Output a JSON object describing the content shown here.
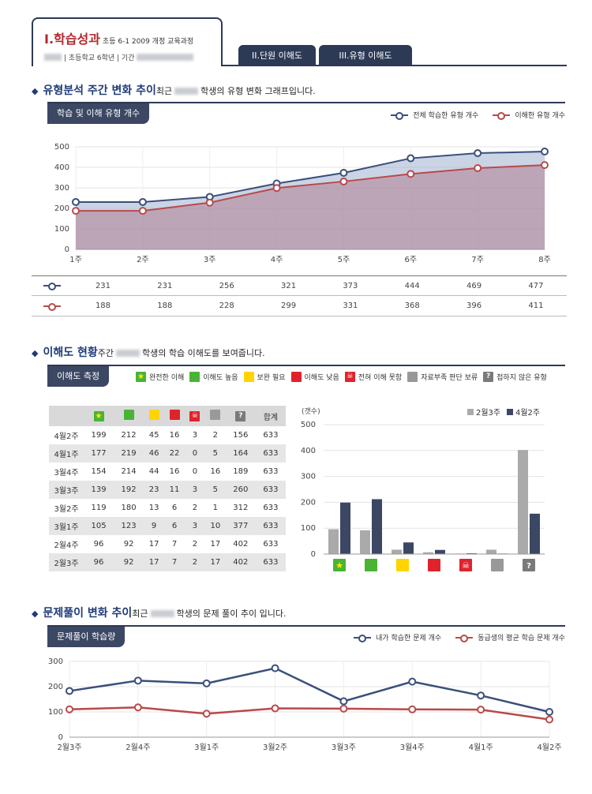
{
  "header": {
    "title_main": "I.학습성과",
    "title_sub": "초등 6-1 2009 개정 교육과정",
    "info": "| 초등학교 6학년 | 기간",
    "tabs": [
      "II.단원 이해도",
      "III.유형 이해도"
    ]
  },
  "section1": {
    "title": "유형분석 주간 변화 추이",
    "desc_before": "최근",
    "desc_after": "학생의 유형 변화 그래프입니다.",
    "panel_tab": "학습 및 이해 유형 개수"
  },
  "section2": {
    "title": "이해도 현황",
    "desc_before": "주간",
    "desc_after": "학생의 학습 이해도를 보여줍니다.",
    "panel_tab": "이해도 측정",
    "legend": [
      {
        "icon": "star",
        "label": "완전한 이해"
      },
      {
        "icon": "green",
        "label": "이해도 높음"
      },
      {
        "icon": "yellow",
        "label": "보완 필요"
      },
      {
        "icon": "red",
        "label": "이해도 낮음"
      },
      {
        "icon": "skull",
        "label": "전혀 이해 못함"
      },
      {
        "icon": "gray",
        "label": "자료부족 판단 보류"
      },
      {
        "icon": "q",
        "label": "접하지 않은 유형"
      }
    ],
    "table_total_label": "합계",
    "table_rows": [
      {
        "week": "4월2주",
        "v": [
          199,
          212,
          45,
          16,
          3,
          2,
          156,
          633
        ]
      },
      {
        "week": "4월1주",
        "v": [
          177,
          219,
          46,
          22,
          0,
          5,
          164,
          633
        ]
      },
      {
        "week": "3월4주",
        "v": [
          154,
          214,
          44,
          16,
          0,
          16,
          189,
          633
        ]
      },
      {
        "week": "3월3주",
        "v": [
          139,
          192,
          23,
          11,
          3,
          5,
          260,
          633
        ]
      },
      {
        "week": "3월2주",
        "v": [
          119,
          180,
          13,
          6,
          2,
          1,
          312,
          633
        ]
      },
      {
        "week": "3월1주",
        "v": [
          105,
          123,
          9,
          6,
          3,
          10,
          377,
          633
        ]
      },
      {
        "week": "2월4주",
        "v": [
          96,
          92,
          17,
          7,
          2,
          17,
          402,
          633
        ]
      },
      {
        "week": "2월3주",
        "v": [
          96,
          92,
          17,
          7,
          2,
          17,
          402,
          633
        ]
      }
    ]
  },
  "section3": {
    "title": "문제풀이 변화 추이",
    "desc_before": "최근",
    "desc_after": "학생의 문제 풀이 추이 입니다.",
    "panel_tab": "문제풀이 학습량"
  },
  "colors": {
    "navy": "#2c3a55",
    "series_blue": "#3a4f7a",
    "series_red": "#b84a4a",
    "bar_gray": "#aaaaaa",
    "bar_navy": "#3b4763"
  },
  "chart_data": [
    {
      "type": "area",
      "categories": [
        "1주",
        "2주",
        "3주",
        "4주",
        "5주",
        "6주",
        "7주",
        "8주"
      ],
      "series": [
        {
          "name": "전체 학습한 유형 개수",
          "values": [
            231,
            231,
            256,
            321,
            373,
            444,
            469,
            477
          ]
        },
        {
          "name": "이해한 유형 개수",
          "values": [
            188,
            188,
            228,
            299,
            331,
            368,
            396,
            411
          ]
        }
      ],
      "yticks": [
        0,
        100,
        200,
        300,
        400,
        500
      ],
      "ylim": [
        0,
        500
      ],
      "grid": true,
      "legend": "top-right"
    },
    {
      "type": "bar",
      "unit_label": "(갯수)",
      "categories": [
        "star",
        "green",
        "yellow",
        "red",
        "skull",
        "gray",
        "q"
      ],
      "series": [
        {
          "name": "2월3주",
          "values": [
            96,
            92,
            17,
            7,
            2,
            17,
            402
          ]
        },
        {
          "name": "4월2주",
          "values": [
            199,
            212,
            45,
            16,
            3,
            2,
            156
          ]
        }
      ],
      "yticks": [
        0,
        100,
        200,
        300,
        400,
        500
      ],
      "ylim": [
        0,
        500
      ],
      "grid": true,
      "legend": "top-right"
    },
    {
      "type": "line",
      "categories": [
        "2월3주",
        "2월4주",
        "3월1주",
        "3월2주",
        "3월3주",
        "3월4주",
        "4월1주",
        "4월2주"
      ],
      "series": [
        {
          "name": "내가 학습한 문제 개수",
          "values": [
            183,
            224,
            213,
            273,
            142,
            220,
            165,
            100
          ]
        },
        {
          "name": "동급생의 평균 학습 문제 개수",
          "values": [
            110,
            118,
            93,
            114,
            113,
            110,
            109,
            70
          ]
        }
      ],
      "yticks": [
        0,
        100,
        200,
        300
      ],
      "ylim": [
        0,
        300
      ],
      "grid": true,
      "legend": "top-right"
    }
  ]
}
